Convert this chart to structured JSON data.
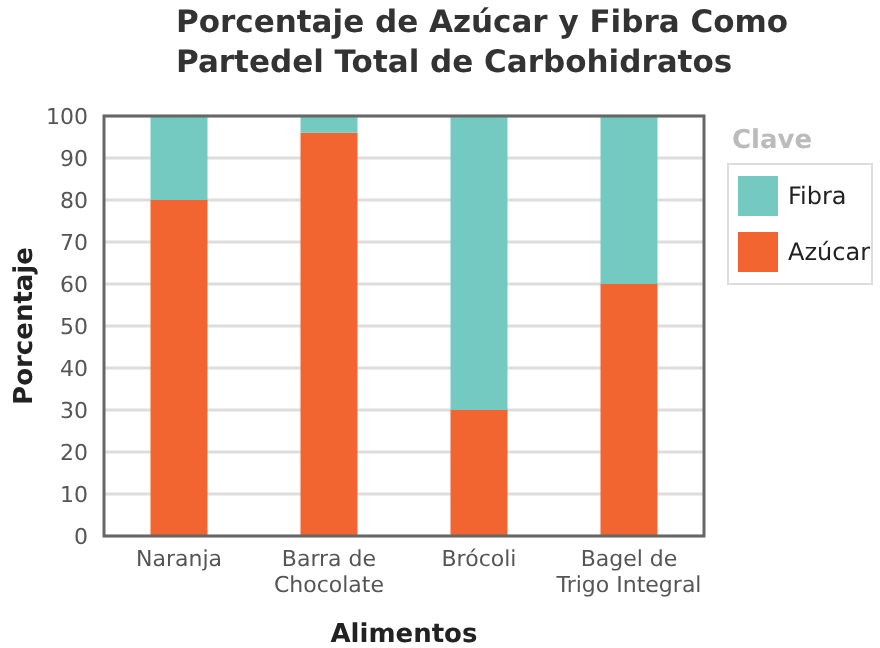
{
  "chart_data": {
    "type": "bar",
    "title": "Porcentaje de Azúcar y Fibra Como\nPartedel Total de Carbohidratos",
    "xlabel": "Alimentos",
    "ylabel": "Porcentaje",
    "legend_title": "Clave",
    "categories": [
      "Naranja",
      "Barra de\nChocolate",
      "Brócoli",
      "Bagel de\nTrigo Integral"
    ],
    "series": [
      {
        "name": "Azúcar",
        "color": "#f26430",
        "values": [
          80,
          96,
          30,
          60
        ]
      },
      {
        "name": "Fibra",
        "color": "#74cac0",
        "values": [
          20,
          4,
          70,
          40
        ]
      }
    ],
    "stacked": true,
    "ylim": [
      0,
      100
    ],
    "yticks": [
      0,
      10,
      20,
      30,
      40,
      50,
      60,
      70,
      80,
      90,
      100
    ],
    "grid": "y",
    "legend": "right"
  }
}
